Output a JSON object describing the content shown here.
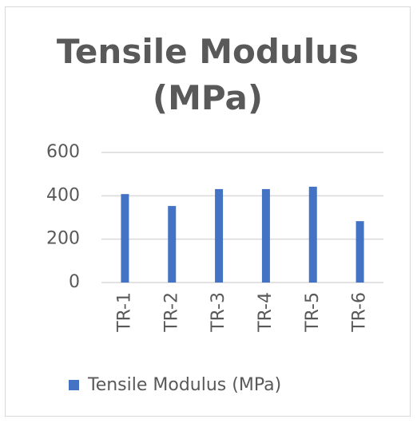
{
  "chart_data": {
    "type": "bar",
    "title": "Tensile Modulus (MPa)",
    "categories": [
      "TR-1",
      "TR-2",
      "TR-3",
      "TR-4",
      "TR-5",
      "TR-6"
    ],
    "series": [
      {
        "name": "Tensile Modulus (MPa)",
        "color": "#4472c4",
        "values": [
          408,
          353,
          431,
          431,
          442,
          283
        ]
      }
    ],
    "ylim": [
      0,
      600
    ],
    "yticks": [
      0,
      200,
      400,
      600
    ],
    "grid": true,
    "legend": "bottom"
  }
}
